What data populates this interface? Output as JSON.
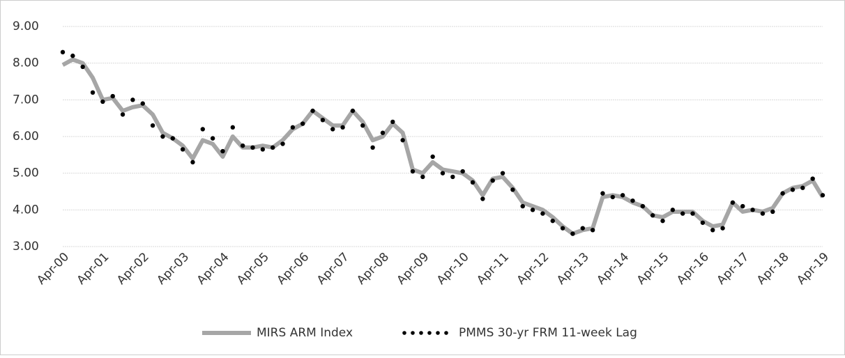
{
  "chart_data": {
    "type": "line",
    "categories": [
      "Apr-00",
      null,
      null,
      null,
      "Apr-01",
      null,
      null,
      null,
      "Apr-02",
      null,
      null,
      null,
      "Apr-03",
      null,
      null,
      null,
      "Apr-04",
      null,
      null,
      null,
      "Apr-05",
      null,
      null,
      null,
      "Apr-06",
      null,
      null,
      null,
      "Apr-07",
      null,
      null,
      null,
      "Apr-08",
      null,
      null,
      null,
      "Apr-09",
      null,
      null,
      null,
      "Apr-10",
      null,
      null,
      null,
      "Apr-11",
      null,
      null,
      null,
      "Apr-12",
      null,
      null,
      null,
      "Apr-13",
      null,
      null,
      null,
      "Apr-14",
      null,
      null,
      null,
      "Apr-15",
      null,
      null,
      null,
      "Apr-16",
      null,
      null,
      null,
      "Apr-17",
      null,
      null,
      null,
      "Apr-18",
      null,
      null,
      null,
      "Apr-19"
    ],
    "series": [
      {
        "name": "MIRS ARM Index",
        "color": "#a6a6a6",
        "style": "line",
        "values": [
          7.95,
          8.1,
          8.0,
          7.6,
          7.0,
          7.05,
          6.7,
          6.8,
          6.85,
          6.6,
          6.1,
          5.95,
          5.75,
          5.4,
          5.9,
          5.8,
          5.45,
          6.0,
          5.7,
          5.7,
          5.75,
          5.7,
          5.9,
          6.2,
          6.35,
          6.7,
          6.5,
          6.3,
          6.3,
          6.7,
          6.4,
          5.9,
          6.0,
          6.35,
          6.1,
          5.1,
          5.0,
          5.3,
          5.1,
          5.05,
          5.0,
          4.8,
          4.4,
          4.85,
          4.9,
          4.6,
          4.2,
          4.1,
          4.0,
          3.8,
          3.55,
          3.35,
          3.45,
          3.5,
          4.35,
          4.4,
          4.35,
          4.2,
          4.1,
          3.85,
          3.8,
          3.95,
          3.95,
          3.95,
          3.7,
          3.55,
          3.6,
          4.2,
          3.95,
          4.0,
          3.95,
          4.05,
          4.45,
          4.6,
          4.65,
          4.8,
          4.35
        ]
      },
      {
        "name": "PMMS 30-yr FRM 11-week Lag",
        "color": "#000000",
        "style": "dots",
        "values": [
          8.3,
          8.2,
          7.9,
          7.2,
          6.95,
          7.1,
          6.6,
          7.0,
          6.9,
          6.3,
          6.0,
          5.95,
          5.65,
          5.3,
          6.2,
          5.95,
          5.6,
          6.25,
          5.75,
          5.7,
          5.65,
          5.7,
          5.8,
          6.25,
          6.35,
          6.7,
          6.45,
          6.2,
          6.25,
          6.7,
          6.3,
          5.7,
          6.1,
          6.4,
          5.9,
          5.05,
          4.9,
          5.45,
          5.0,
          4.9,
          5.05,
          4.75,
          4.3,
          4.8,
          5.0,
          4.55,
          4.1,
          4.0,
          3.9,
          3.7,
          3.5,
          3.35,
          3.5,
          3.45,
          4.45,
          4.35,
          4.4,
          4.25,
          4.1,
          3.85,
          3.7,
          4.0,
          3.9,
          3.9,
          3.65,
          3.45,
          3.5,
          4.2,
          4.1,
          4.0,
          3.9,
          3.95,
          4.45,
          4.55,
          4.6,
          4.85,
          4.4
        ]
      }
    ],
    "ylim": [
      3,
      9
    ],
    "yticks": [
      {
        "value": 3,
        "label": "3.00"
      },
      {
        "value": 4,
        "label": "4.00"
      },
      {
        "value": 5,
        "label": "5.00"
      },
      {
        "value": 6,
        "label": "6.00"
      },
      {
        "value": 7,
        "label": "7.00"
      },
      {
        "value": 8,
        "label": "8.00"
      },
      {
        "value": 9,
        "label": "9.00"
      }
    ],
    "grid": true,
    "legend": "bottom"
  }
}
